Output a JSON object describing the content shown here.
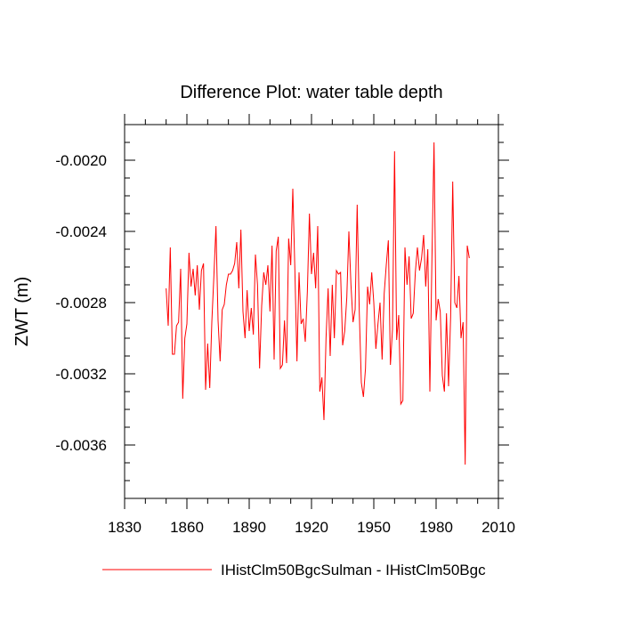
{
  "chart_data": {
    "type": "line",
    "title": "Difference Plot: water table depth",
    "xlabel": "",
    "ylabel": "ZWT  (m)",
    "xlim": [
      1830,
      2010
    ],
    "ylim": [
      -0.0039,
      -0.0018
    ],
    "x_ticks": [
      1830,
      1860,
      1890,
      1920,
      1950,
      1980,
      2010
    ],
    "x_tick_labels": [
      "1830",
      "1860",
      "1890",
      "1920",
      "1950",
      "1980",
      "2010"
    ],
    "y_ticks": [
      -0.0036,
      -0.0032,
      -0.0028,
      -0.0024,
      -0.002
    ],
    "y_tick_labels": [
      "-0.0036",
      "-0.0032",
      "-0.0028",
      "-0.0024",
      "-0.0020"
    ],
    "grid": false,
    "legend_position": "bottom",
    "series": [
      {
        "name": "IHistClm50BgcSulman - IHistClm50Bgc",
        "color": "#ff0000",
        "x_start": 1850,
        "x_step": 1,
        "values": [
          -0.00272,
          -0.00293,
          -0.00249,
          -0.00309,
          -0.00309,
          -0.00293,
          -0.00291,
          -0.00261,
          -0.00334,
          -0.003,
          -0.00292,
          -0.00252,
          -0.00271,
          -0.00261,
          -0.00276,
          -0.00259,
          -0.00284,
          -0.00262,
          -0.00258,
          -0.00329,
          -0.00303,
          -0.00328,
          -0.00291,
          -0.00265,
          -0.00237,
          -0.0029,
          -0.00313,
          -0.00284,
          -0.00281,
          -0.0027,
          -0.00264,
          -0.00264,
          -0.00262,
          -0.00258,
          -0.00246,
          -0.00272,
          -0.00239,
          -0.00285,
          -0.003,
          -0.00273,
          -0.00296,
          -0.00283,
          -0.00298,
          -0.00253,
          -0.0027,
          -0.00317,
          -0.00282,
          -0.00263,
          -0.0027,
          -0.00259,
          -0.00285,
          -0.00248,
          -0.00312,
          -0.00251,
          -0.00243,
          -0.00317,
          -0.00315,
          -0.0029,
          -0.00314,
          -0.00244,
          -0.00259,
          -0.00216,
          -0.00262,
          -0.00313,
          -0.00263,
          -0.00292,
          -0.00289,
          -0.00302,
          -0.00274,
          -0.0023,
          -0.00264,
          -0.00252,
          -0.00272,
          -0.00237,
          -0.0033,
          -0.00322,
          -0.00346,
          -0.003,
          -0.00272,
          -0.0031,
          -0.0027,
          -0.003,
          -0.00262,
          -0.00264,
          -0.00263,
          -0.00304,
          -0.00296,
          -0.00277,
          -0.0024,
          -0.0027,
          -0.00291,
          -0.00284,
          -0.00225,
          -0.00285,
          -0.00325,
          -0.00333,
          -0.00317,
          -0.00271,
          -0.00281,
          -0.00263,
          -0.0028,
          -0.00306,
          -0.00292,
          -0.0028,
          -0.00312,
          -0.00275,
          -0.00259,
          -0.00245,
          -0.00315,
          -0.00295,
          -0.00195,
          -0.00301,
          -0.00287,
          -0.00337,
          -0.00335,
          -0.00249,
          -0.0027,
          -0.00254,
          -0.00289,
          -0.00286,
          -0.00263,
          -0.00249,
          -0.00262,
          -0.00255,
          -0.00242,
          -0.00271,
          -0.0025,
          -0.0033,
          -0.00255,
          -0.0019,
          -0.0029,
          -0.00278,
          -0.00285,
          -0.00321,
          -0.0033,
          -0.00286,
          -0.00327,
          -0.00288,
          -0.00212,
          -0.0028,
          -0.00283,
          -0.00265,
          -0.003,
          -0.00291,
          -0.00371,
          -0.00248,
          -0.00255
        ]
      }
    ]
  }
}
